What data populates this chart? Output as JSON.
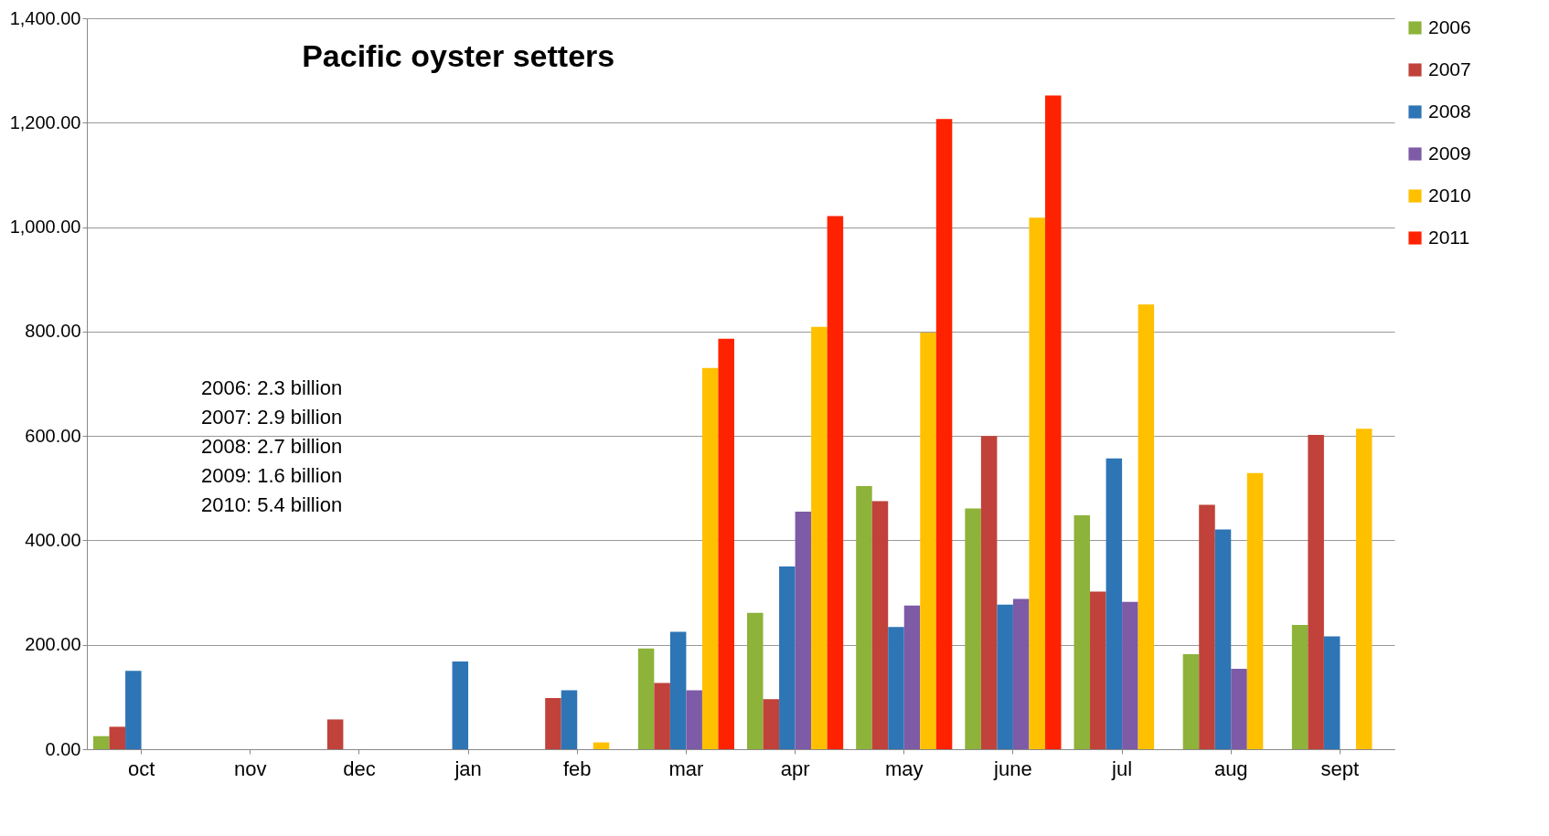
{
  "chart_data": {
    "type": "bar",
    "title": "Pacific oyster setters",
    "categories": [
      "oct",
      "nov",
      "dec",
      "jan",
      "feb",
      "mar",
      "apr",
      "may",
      "june",
      "jul",
      "aug",
      "sept"
    ],
    "series": [
      {
        "name": "2006",
        "color": "#8db33a",
        "values": [
          25,
          null,
          null,
          null,
          null,
          193,
          261,
          504,
          461,
          448,
          182,
          238
        ]
      },
      {
        "name": "2007",
        "color": "#c0423a",
        "values": [
          43,
          null,
          57,
          null,
          98,
          127,
          96,
          475,
          600,
          302,
          468,
          602
        ]
      },
      {
        "name": "2008",
        "color": "#2e75b6",
        "values": [
          150,
          null,
          null,
          168,
          113,
          225,
          350,
          234,
          277,
          557,
          421,
          216
        ]
      },
      {
        "name": "2009",
        "color": "#7d5ba6",
        "values": [
          null,
          null,
          null,
          null,
          null,
          113,
          455,
          275,
          288,
          282,
          154,
          null
        ]
      },
      {
        "name": "2010",
        "color": "#ffc000",
        "values": [
          null,
          null,
          null,
          null,
          13,
          730,
          809,
          798,
          1018,
          852,
          529,
          614
        ]
      },
      {
        "name": "2011",
        "color": "#ff2200",
        "values": [
          null,
          null,
          null,
          null,
          null,
          786,
          1021,
          1207,
          1252,
          null,
          null,
          null
        ]
      }
    ],
    "ylim": [
      0,
      1400
    ],
    "yticks": [
      {
        "value": 0,
        "label": "0.00"
      },
      {
        "value": 200,
        "label": "200.00"
      },
      {
        "value": 400,
        "label": "400.00"
      },
      {
        "value": 600,
        "label": "600.00"
      },
      {
        "value": 800,
        "label": "800.00"
      },
      {
        "value": 1000,
        "label": "1,000.00"
      },
      {
        "value": 1200,
        "label": "1,200.00"
      },
      {
        "value": 1400,
        "label": "1,400.00"
      }
    ],
    "grid": "y",
    "legend": "right",
    "annotations": [
      "2006: 2.3 billion",
      "2007: 2.9 billion",
      "2008: 2.7 billion",
      "2009: 1.6 billion",
      "2010: 5.4 billion"
    ]
  }
}
